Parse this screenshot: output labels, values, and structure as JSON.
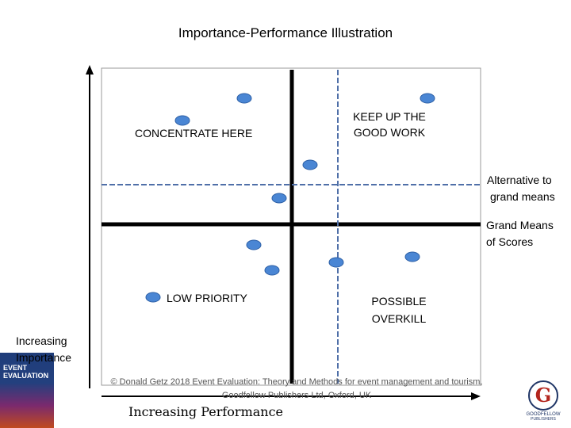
{
  "title": "Importance-Performance Illustration",
  "quadrants": {
    "top_left": "CONCENTRATE HERE",
    "top_right_line1": "KEEP UP THE",
    "top_right_line2": "GOOD WORK",
    "bottom_left": "LOW PRIORITY",
    "bottom_right_line1": "POSSIBLE",
    "bottom_right_line2": "OVERKILL"
  },
  "legend": {
    "alt_line1": "Alternative to",
    "alt_line2": "grand means",
    "grand_line1": "Grand Means",
    "grand_line2": "of Scores"
  },
  "axes": {
    "y_line1": "Increasing",
    "y_line2": "Importance",
    "x": "Increasing Performance"
  },
  "copyright": {
    "line1": "© Donald Getz 2018 Event Evaluation: Theory and Methods for event management and tourism,",
    "line2": "Goodfellow Publishers Ltd, Oxford, UK"
  },
  "book": {
    "line1": "EVENT",
    "line2": "EVALUATION"
  },
  "logo": {
    "letter": "G",
    "line1": "GOODFELLOW",
    "line2": "PUBLISHERS"
  },
  "colors": {
    "dot": "#4a86d4",
    "dash": "#4f6fa8"
  }
}
